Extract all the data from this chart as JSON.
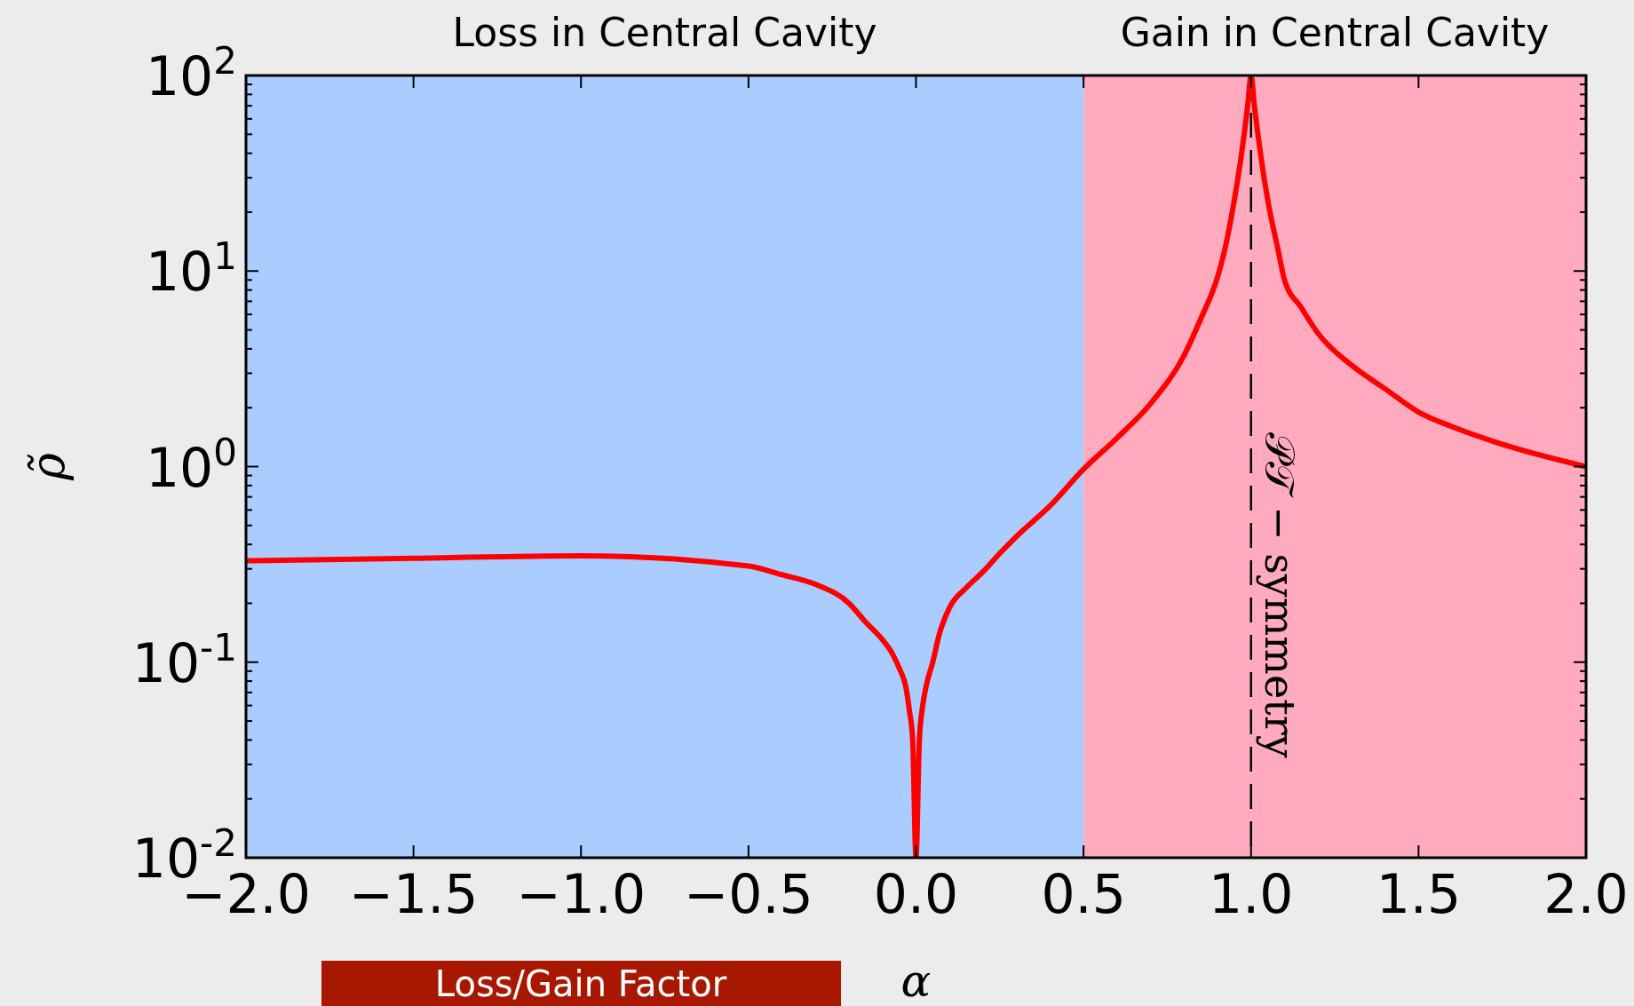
{
  "chart_data": {
    "type": "line",
    "xlabel": "α",
    "ylabel": "ρ̃",
    "log": "y",
    "xlim": [
      -2,
      2
    ],
    "xticks": [
      {
        "value": -2,
        "label": "−2.0"
      },
      {
        "value": -1.5,
        "label": "−1.5"
      },
      {
        "value": -1,
        "label": "−1.0"
      },
      {
        "value": -0.5,
        "label": "−0.5"
      },
      {
        "value": 0,
        "label": "0.0"
      },
      {
        "value": 0.5,
        "label": "0.5"
      },
      {
        "value": 1,
        "label": "1.0"
      },
      {
        "value": 1.5,
        "label": "1.5"
      },
      {
        "value": 2,
        "label": "2.0"
      }
    ],
    "ylim": [
      0.01,
      100
    ],
    "yticks": [
      {
        "value": 0.01,
        "label": "10$^{-2}$"
      },
      {
        "value": 0.02,
        "label": null
      },
      {
        "value": 0.03,
        "label": null
      },
      {
        "value": 0.04,
        "label": null
      },
      {
        "value": 0.05,
        "label": null
      },
      {
        "value": 0.06,
        "label": null
      },
      {
        "value": 0.07,
        "label": null
      },
      {
        "value": 0.08,
        "label": null
      },
      {
        "value": 0.09,
        "label": null
      },
      {
        "value": 0.1,
        "label": "10$^{-1}$"
      },
      {
        "value": 0.2,
        "label": null
      },
      {
        "value": 0.3,
        "label": null
      },
      {
        "value": 0.4,
        "label": null
      },
      {
        "value": 0.5,
        "label": null
      },
      {
        "value": 0.6,
        "label": null
      },
      {
        "value": 0.7,
        "label": null
      },
      {
        "value": 0.8,
        "label": null
      },
      {
        "value": 0.9,
        "label": null
      },
      {
        "value": 1,
        "label": "10$^{0}$"
      },
      {
        "value": 2,
        "label": null
      },
      {
        "value": 3,
        "label": null
      },
      {
        "value": 4,
        "label": null
      },
      {
        "value": 5,
        "label": null
      },
      {
        "value": 6,
        "label": null
      },
      {
        "value": 7,
        "label": null
      },
      {
        "value": 8,
        "label": null
      },
      {
        "value": 9,
        "label": null
      },
      {
        "value": 10,
        "label": "10$^{1}$"
      },
      {
        "value": 20,
        "label": null
      },
      {
        "value": 30,
        "label": null
      },
      {
        "value": 40,
        "label": null
      },
      {
        "value": 50,
        "label": null
      },
      {
        "value": 60,
        "label": null
      },
      {
        "value": 70,
        "label": null
      },
      {
        "value": 80,
        "label": null
      },
      {
        "value": 90,
        "label": null
      },
      {
        "value": 100,
        "label": "10$^{2}$"
      }
    ],
    "grid": false,
    "line_style": "solid",
    "series": [
      {
        "color": "#ff0000",
        "x": [
          -2,
          -1.5,
          -1,
          -0.5,
          -0.4,
          -0.3,
          -0.2,
          -0.15,
          -0.1,
          -0.07,
          -0.05,
          -0.03,
          -0.02,
          -0.01,
          0,
          0.01,
          0.02,
          0.03,
          0.05,
          0.07,
          0.1,
          0.15,
          0.2,
          0.25,
          0.3,
          0.4,
          0.5,
          0.6,
          0.7,
          0.8,
          0.85,
          0.9,
          0.92,
          0.95,
          0.97,
          0.99,
          1,
          1.01,
          1.03,
          1.05,
          1.08,
          1.1,
          1.15,
          1.2,
          1.3,
          1.4,
          1.5,
          1.6,
          1.75,
          2
        ],
        "values": [
          0.33,
          0.34,
          0.35,
          0.31,
          0.28,
          0.25,
          0.2,
          0.16,
          0.13,
          0.11,
          0.093,
          0.074,
          0.057,
          0.04,
          0.01,
          0.04,
          0.06,
          0.075,
          0.1,
          0.14,
          0.19,
          0.24,
          0.29,
          0.36,
          0.44,
          0.63,
          0.97,
          1.4,
          2.1,
          3.7,
          5.7,
          9.3,
          12.5,
          23,
          38,
          70,
          100,
          70,
          38,
          23,
          13,
          9,
          6.5,
          4.8,
          3.3,
          2.5,
          1.9,
          1.6,
          1.3,
          1.0
        ]
      }
    ],
    "bands": [
      {
        "axis": "x",
        "from": -2,
        "to": 0.5,
        "label": "Loss in Central Cavity",
        "color": "#aaccff"
      },
      {
        "axis": "x",
        "from": 0.5,
        "to": 2,
        "label": "Gain in Central Cavity",
        "color": "#ffaabf"
      }
    ],
    "ref_lines": [
      {
        "axis": "x",
        "value": 1,
        "label": "𝒫𝒯 − symmetry",
        "color": "#000000",
        "line_style": "dashed"
      }
    ],
    "annotations": [
      "Loss/Gain Factor"
    ]
  }
}
